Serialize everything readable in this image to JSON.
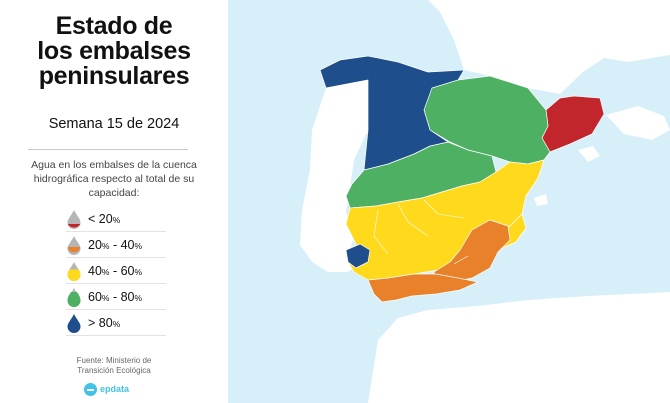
{
  "title_lines": [
    "Estado de",
    "los embalses",
    "peninsulares"
  ],
  "subtitle": "Semana 15 de 2024",
  "legend_description": "Agua en los embalses de la cuenca hidrográfica respecto al total de su capacidad:",
  "legend": [
    {
      "label": "< 20",
      "unit": "%",
      "color": "#c0262c",
      "fill_level": "low"
    },
    {
      "label_a": "20",
      "label_b": " - 40",
      "unit": "%",
      "color": "#e8812a",
      "fill_level": "mid-low"
    },
    {
      "label_a": "40",
      "label_b": " - 60",
      "unit": "%",
      "color": "#ffd91c",
      "fill_level": "mid"
    },
    {
      "label_a": "60",
      "label_b": " - 80",
      "unit": "%",
      "color": "#4eb063",
      "fill_level": "high"
    },
    {
      "label": "> 80",
      "unit": "%",
      "color": "#1f4e8c",
      "fill_level": "full"
    }
  ],
  "source": [
    "Fuente: Ministerio de",
    "Transición Ecológica"
  ],
  "logo_text": "epdata",
  "colors": {
    "sea": "#d6eff8",
    "land_outside": "#ffffff",
    "lt20": "#c0262c",
    "20_40": "#e8812a",
    "40_60": "#ffd91c",
    "60_80": "#4eb063",
    "gt80": "#1f4e8c",
    "portugal": "#ffffff"
  },
  "basins": [
    {
      "name": "cantabrico_galicia_duero",
      "category": "gt80"
    },
    {
      "name": "ebro",
      "category": "60_80"
    },
    {
      "name": "cataluna",
      "category": "lt20"
    },
    {
      "name": "tajo",
      "category": "60_80"
    },
    {
      "name": "guadiana_jucar_segura",
      "category": "40_60"
    },
    {
      "name": "guadalquivir_este",
      "category": "20_40"
    },
    {
      "name": "costa_sur",
      "category": "20_40"
    },
    {
      "name": "tinto_odiel_piedras",
      "category": "gt80"
    }
  ]
}
